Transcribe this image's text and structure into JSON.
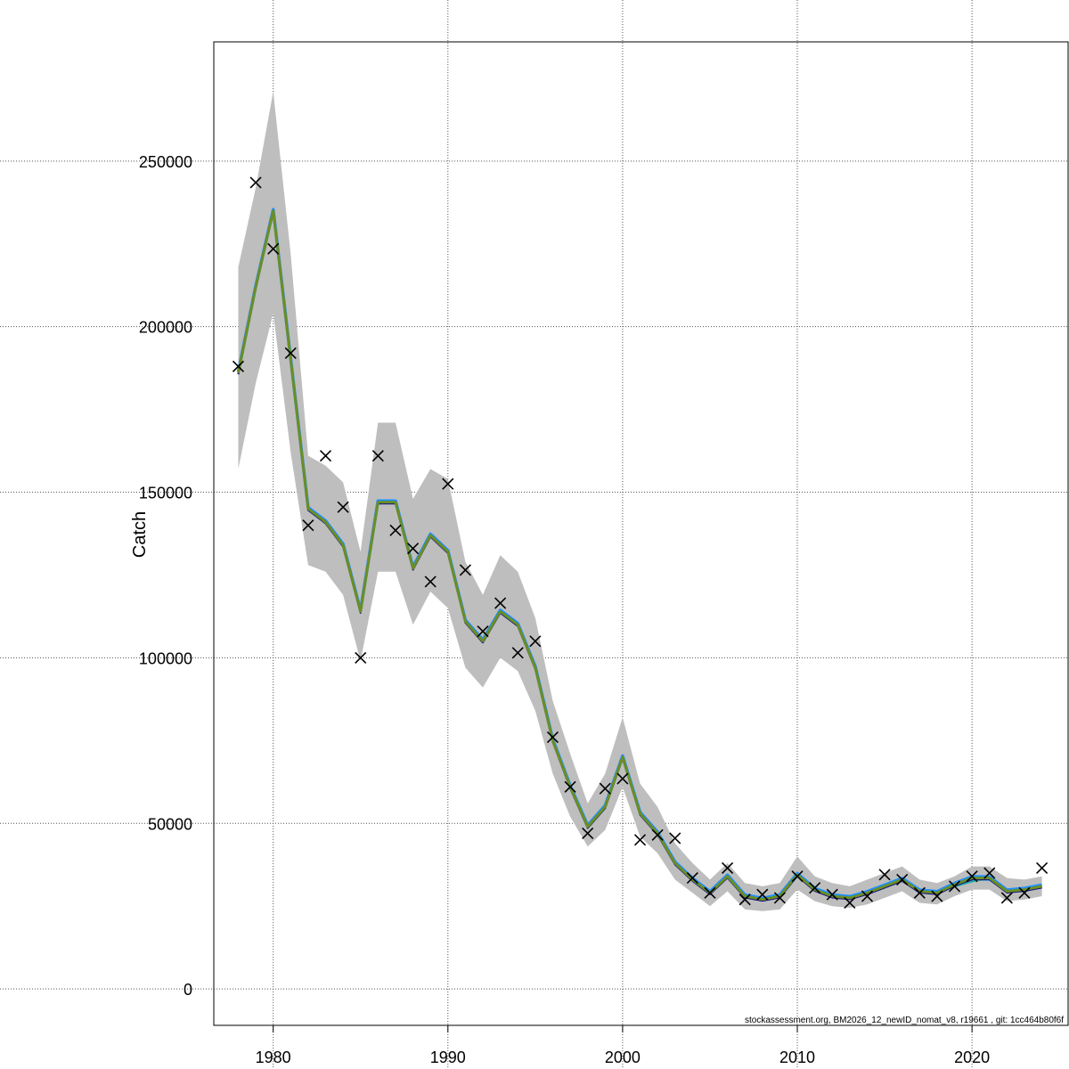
{
  "chart_data": {
    "type": "line",
    "title": "",
    "xlabel": "",
    "ylabel": "Catch",
    "xlim": [
      1976.6,
      2025.5
    ],
    "ylim": [
      -11000,
      286000
    ],
    "grid": true,
    "x_ticks": [
      1980,
      1990,
      2000,
      2010,
      2020
    ],
    "y_ticks": [
      0,
      50000,
      100000,
      150000,
      200000,
      250000
    ],
    "footnote": "stockassessment.org, BM2026_12_newID_nomat_v8, r19661 , git: 1cc464b80f6f",
    "colors": {
      "band": "#bebebe",
      "estimate": "#6b8e23",
      "observed": "#000000",
      "grid": "#555555",
      "retro": [
        "#0d0887",
        "#2196f3",
        "#1db0a4",
        "#3aa845",
        "#7c2cb3"
      ]
    },
    "estimate": {
      "x": [
        1978,
        1979,
        1980,
        1981,
        1982,
        1983,
        1984,
        1985,
        1986,
        1987,
        1988,
        1989,
        1990,
        1991,
        1992,
        1993,
        1994,
        1995,
        1996,
        1997,
        1998,
        1999,
        2000,
        2001,
        2002,
        2003,
        2004,
        2005,
        2006,
        2007,
        2008,
        2009,
        2010,
        2011,
        2012,
        2013,
        2014,
        2015,
        2016,
        2017,
        2018,
        2019,
        2020,
        2021,
        2022,
        2023,
        2024
      ],
      "y": [
        186000,
        212000,
        235000,
        190000,
        145000,
        141000,
        134000,
        114000,
        147000,
        147000,
        127000,
        137000,
        132000,
        111000,
        105000,
        114000,
        110000,
        97000,
        75000,
        61000,
        49000,
        55000,
        70000,
        53000,
        47000,
        38000,
        33000,
        29000,
        34000,
        28000,
        27000,
        28000,
        34500,
        30000,
        28000,
        27500,
        29000,
        31000,
        33000,
        29500,
        29000,
        31500,
        33500,
        33500,
        29500,
        30000,
        31000
      ]
    },
    "band": {
      "upper": [
        218000,
        242000,
        271000,
        222000,
        161000,
        158000,
        153000,
        132000,
        171000,
        171000,
        148000,
        157000,
        154000,
        129000,
        119000,
        131000,
        126000,
        112000,
        87000,
        71000,
        56000,
        65000,
        82000,
        62000,
        55000,
        44000,
        38000,
        33000,
        38000,
        32000,
        31000,
        32000,
        40000,
        34000,
        32000,
        31000,
        33000,
        35000,
        37000,
        33000,
        32000,
        34000,
        37000,
        37000,
        33500,
        33000,
        34000
      ],
      "lower": [
        157000,
        183000,
        204000,
        162000,
        128000,
        126000,
        119000,
        99000,
        126000,
        126000,
        110000,
        120000,
        115000,
        97000,
        91000,
        100000,
        96000,
        84000,
        65000,
        52000,
        43000,
        48000,
        61000,
        46000,
        41000,
        33000,
        29000,
        25000,
        29500,
        24000,
        23500,
        24000,
        30000,
        26500,
        25000,
        24500,
        25500,
        27500,
        29500,
        26000,
        25500,
        28000,
        30000,
        30000,
        26500,
        27000,
        28000
      ]
    },
    "retros": [
      {
        "x": [
          2020,
          2021,
          2022,
          2023,
          2024
        ],
        "y": [
          33500,
          33500,
          30000,
          30000,
          31000
        ]
      },
      {
        "x": [
          2019,
          2020,
          2021,
          2022,
          2023
        ],
        "y": [
          31500,
          33000,
          33000,
          29500,
          30000
        ]
      },
      {
        "x": [
          2018,
          2019,
          2020,
          2021,
          2022
        ],
        "y": [
          29000,
          31000,
          32500,
          33500,
          29500
        ]
      },
      {
        "x": [
          2017,
          2018,
          2019,
          2020,
          2021
        ],
        "y": [
          29500,
          29000,
          31000,
          34000,
          34000
        ]
      },
      {
        "x": [
          2016,
          2017,
          2018,
          2019,
          2020
        ],
        "y": [
          33000,
          29500,
          29000,
          31500,
          33000
        ]
      }
    ],
    "observed": {
      "x": [
        1978,
        1979,
        1980,
        1981,
        1982,
        1983,
        1984,
        1985,
        1986,
        1987,
        1988,
        1989,
        1990,
        1991,
        1992,
        1993,
        1994,
        1995,
        1996,
        1997,
        1998,
        1999,
        2000,
        2001,
        2002,
        2003,
        2004,
        2005,
        2006,
        2007,
        2008,
        2009,
        2010,
        2011,
        2012,
        2013,
        2014,
        2015,
        2016,
        2017,
        2018,
        2019,
        2020,
        2021,
        2022,
        2023,
        2024
      ],
      "y": [
        188000,
        243500,
        223500,
        192000,
        140000,
        161000,
        145500,
        100000,
        161000,
        138500,
        133000,
        123000,
        152500,
        126500,
        108000,
        116500,
        101500,
        105000,
        76000,
        61000,
        47000,
        60500,
        63500,
        45000,
        46500,
        45500,
        33500,
        29000,
        36500,
        27000,
        28500,
        27500,
        34000,
        30500,
        28500,
        26000,
        28000,
        34500,
        33000,
        29000,
        28000,
        31000,
        34000,
        35000,
        27500,
        29000,
        36500
      ]
    }
  }
}
